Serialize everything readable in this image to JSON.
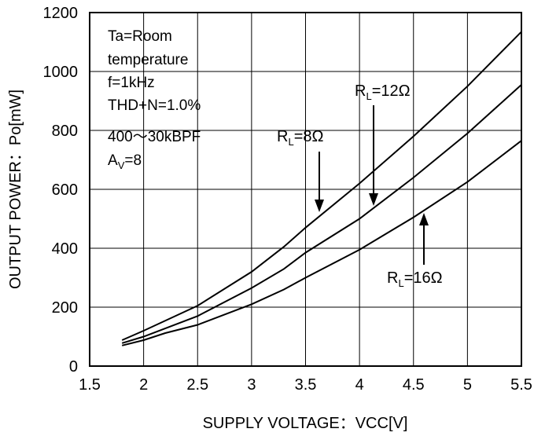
{
  "chart_data": {
    "type": "line",
    "xlabel": "SUPPLY VOLTAGE：VCC[V]",
    "ylabel": "OUTPUT POWER：Po[mW]",
    "xlim": [
      1.5,
      5.5
    ],
    "ylim": [
      0,
      1200
    ],
    "x_ticks": [
      "1.5",
      "2",
      "2.5",
      "3",
      "3.5",
      "4",
      "4.5",
      "5",
      "5.5"
    ],
    "y_ticks": [
      "0",
      "200",
      "400",
      "600",
      "800",
      "1000",
      "1200"
    ],
    "grid": true,
    "conditions": [
      {
        "text": "Ta=Room"
      },
      {
        "text": "temperature"
      },
      {
        "text": "f=1kHz"
      },
      {
        "text": "THD+N=1.0%"
      },
      {
        "text": "400～30kBPF"
      },
      {
        "main": "A",
        "sub": "V",
        "rest": "=8"
      }
    ],
    "series": [
      {
        "name": "RL=8Ω",
        "label_main": "R",
        "label_sub": "L",
        "label_rest": "=8Ω",
        "x": [
          1.8,
          2.0,
          2.5,
          3.0,
          3.3,
          3.5,
          4.0,
          4.5,
          5.0,
          5.5
        ],
        "y": [
          88,
          120,
          205,
          320,
          405,
          470,
          620,
          780,
          950,
          1135
        ]
      },
      {
        "name": "RL=12Ω",
        "label_main": "R",
        "label_sub": "L",
        "label_rest": "=12Ω",
        "x": [
          1.8,
          2.0,
          2.5,
          3.0,
          3.3,
          3.5,
          4.0,
          4.5,
          5.0,
          5.5
        ],
        "y": [
          78,
          100,
          170,
          265,
          330,
          385,
          500,
          640,
          790,
          955
        ]
      },
      {
        "name": "RL=16Ω",
        "label_main": "R",
        "label_sub": "L",
        "label_rest": "=16Ω",
        "x": [
          1.8,
          2.0,
          2.2,
          2.5,
          3.0,
          3.3,
          3.5,
          4.0,
          4.5,
          5.0,
          5.5
        ],
        "y": [
          70,
          88,
          112,
          140,
          210,
          260,
          300,
          395,
          505,
          625,
          765
        ]
      }
    ]
  }
}
